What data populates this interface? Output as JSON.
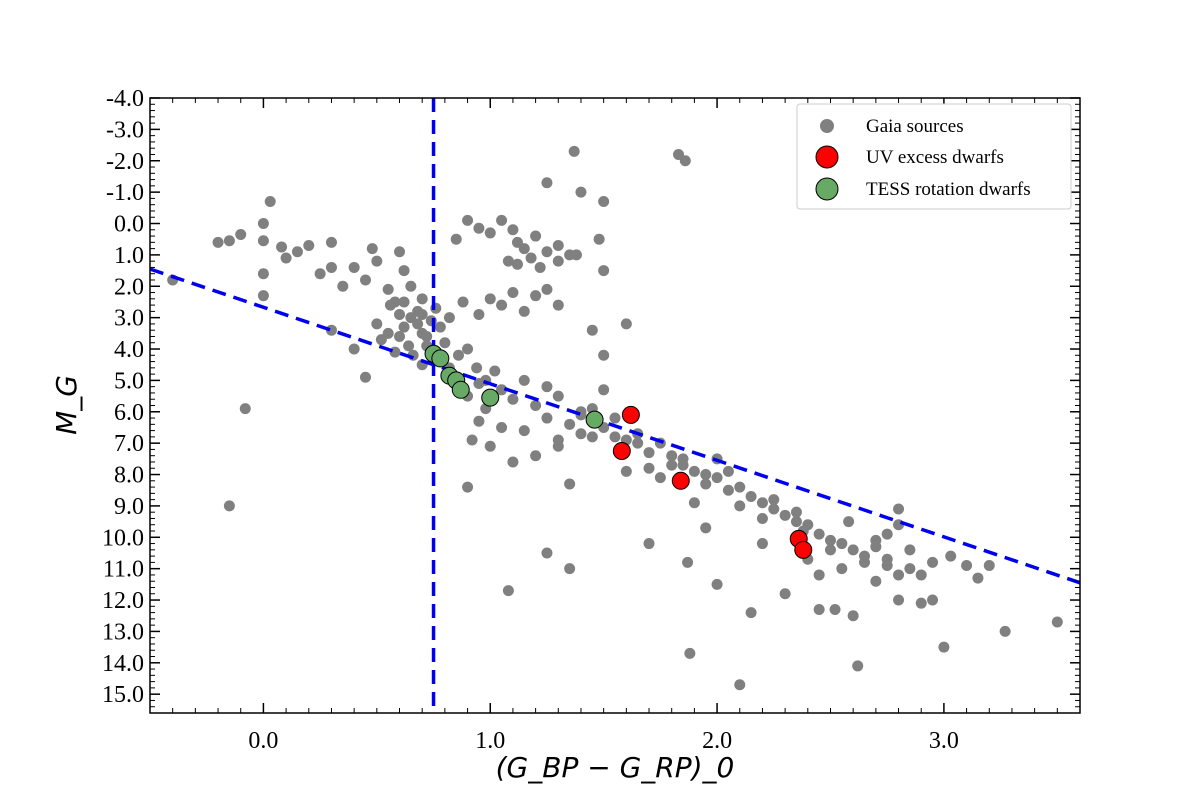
{
  "chart_data": {
    "type": "scatter",
    "xlabel": "(G_BP − G_RP)_0",
    "ylabel": "M_G",
    "xlim": [
      -0.5,
      3.6
    ],
    "ylim": [
      15.6,
      -4.0
    ],
    "x_ticks": [
      0.0,
      1.0,
      2.0,
      3.0
    ],
    "x_tick_labels": [
      "0.0",
      "1.0",
      "2.0",
      "3.0"
    ],
    "y_ticks": [
      -4,
      -3,
      -2,
      -1,
      0,
      1,
      2,
      3,
      4,
      5,
      6,
      7,
      8,
      9,
      10,
      11,
      12,
      13,
      14,
      15
    ],
    "y_tick_labels": [
      "-4.0",
      "-3.0",
      "-2.0",
      "-1.0",
      "0.0",
      "1.0",
      "2.0",
      "3.0",
      "4.0",
      "5.0",
      "6.0",
      "7.0",
      "8.0",
      "9.0",
      "10.0",
      "11.0",
      "12.0",
      "13.0",
      "14.0",
      "15.0"
    ],
    "legend": {
      "position": "top-right",
      "entries": [
        {
          "label": "Gaia sources",
          "color": "#808080"
        },
        {
          "label": "UV excess dwarfs",
          "color": "#ff0000"
        },
        {
          "label": "TESS rotation dwarfs",
          "color": "#66aa66"
        }
      ]
    },
    "colors": {
      "gaia": "#808080",
      "uv": "#ff0000",
      "tess": "#66aa66",
      "line": "#0000ee"
    },
    "reference_lines": {
      "vertical_x": 0.75,
      "diagonal": {
        "x": [
          -0.5,
          3.6
        ],
        "y": [
          1.45,
          11.45
        ]
      }
    },
    "series": [
      {
        "name": "Gaia sources",
        "points": [
          [
            -0.4,
            1.8
          ],
          [
            -0.2,
            0.6
          ],
          [
            -0.15,
            0.55
          ],
          [
            -0.1,
            0.35
          ],
          [
            0.0,
            0.0
          ],
          [
            0.0,
            0.55
          ],
          [
            0.03,
            -0.7
          ],
          [
            0.08,
            0.75
          ],
          [
            0.1,
            1.1
          ],
          [
            0.0,
            1.6
          ],
          [
            0.0,
            2.3
          ],
          [
            0.15,
            0.9
          ],
          [
            0.2,
            0.7
          ],
          [
            0.25,
            1.6
          ],
          [
            0.3,
            1.4
          ],
          [
            0.35,
            2.0
          ],
          [
            0.3,
            0.6
          ],
          [
            0.4,
            1.4
          ],
          [
            0.45,
            1.8
          ],
          [
            0.5,
            1.2
          ],
          [
            0.48,
            0.8
          ],
          [
            0.6,
            0.9
          ],
          [
            0.62,
            1.5
          ],
          [
            0.55,
            2.1
          ],
          [
            0.58,
            2.5
          ],
          [
            0.65,
            2.0
          ],
          [
            0.7,
            2.9
          ],
          [
            -0.15,
            9.0
          ],
          [
            -0.08,
            5.9
          ],
          [
            0.3,
            3.4
          ],
          [
            0.85,
            0.5
          ],
          [
            0.9,
            -0.1
          ],
          [
            0.95,
            0.15
          ],
          [
            1.0,
            0.3
          ],
          [
            1.05,
            -0.1
          ],
          [
            1.1,
            0.2
          ],
          [
            1.12,
            0.6
          ],
          [
            1.15,
            0.8
          ],
          [
            1.2,
            0.4
          ],
          [
            1.25,
            0.9
          ],
          [
            1.3,
            0.7
          ],
          [
            1.35,
            1.0
          ],
          [
            1.25,
            -1.3
          ],
          [
            1.37,
            -2.3
          ],
          [
            1.4,
            -1.0
          ],
          [
            1.5,
            -0.7
          ],
          [
            1.48,
            0.5
          ],
          [
            1.5,
            1.5
          ],
          [
            0.88,
            2.5
          ],
          [
            0.95,
            2.9
          ],
          [
            1.0,
            2.4
          ],
          [
            1.05,
            2.6
          ],
          [
            1.1,
            2.2
          ],
          [
            1.15,
            2.8
          ],
          [
            1.2,
            2.3
          ],
          [
            1.25,
            2.1
          ],
          [
            1.3,
            2.6
          ],
          [
            1.08,
            1.2
          ],
          [
            1.12,
            1.3
          ],
          [
            1.18,
            1.1
          ],
          [
            1.22,
            1.4
          ],
          [
            1.3,
            1.2
          ],
          [
            1.38,
            1.0
          ],
          [
            1.45,
            3.4
          ],
          [
            1.5,
            4.2
          ],
          [
            1.6,
            3.2
          ],
          [
            1.83,
            -2.2
          ],
          [
            1.86,
            -2.0
          ],
          [
            0.45,
            4.9
          ],
          [
            0.4,
            4.0
          ],
          [
            0.9,
            8.4
          ],
          [
            1.08,
            11.7
          ],
          [
            1.25,
            10.5
          ],
          [
            1.35,
            11.0
          ],
          [
            1.7,
            10.2
          ],
          [
            1.87,
            10.8
          ],
          [
            1.88,
            13.7
          ],
          [
            2.0,
            11.5
          ],
          [
            2.1,
            14.7
          ],
          [
            2.15,
            12.4
          ],
          [
            2.3,
            11.8
          ],
          [
            2.45,
            12.3
          ],
          [
            2.52,
            12.3
          ],
          [
            2.6,
            12.5
          ],
          [
            2.62,
            14.1
          ],
          [
            2.8,
            12.0
          ],
          [
            2.9,
            12.1
          ],
          [
            2.95,
            12.0
          ],
          [
            3.0,
            13.5
          ],
          [
            3.03,
            10.6
          ],
          [
            3.1,
            10.9
          ],
          [
            3.15,
            11.3
          ],
          [
            3.2,
            10.9
          ],
          [
            3.27,
            13.0
          ],
          [
            3.5,
            12.7
          ],
          [
            1.95,
            9.7
          ],
          [
            2.1,
            9.0
          ],
          [
            2.2,
            9.4
          ],
          [
            2.25,
            8.8
          ],
          [
            2.38,
            9.8
          ],
          [
            2.4,
            10.7
          ],
          [
            2.5,
            10.4
          ],
          [
            2.55,
            11.0
          ],
          [
            2.58,
            9.5
          ],
          [
            2.65,
            10.8
          ],
          [
            2.7,
            10.1
          ],
          [
            2.75,
            10.7
          ],
          [
            2.8,
            9.6
          ],
          [
            2.85,
            10.4
          ],
          [
            2.9,
            11.2
          ],
          [
            2.95,
            10.8
          ],
          [
            2.8,
            9.1
          ],
          [
            2.75,
            9.9
          ],
          [
            2.7,
            11.4
          ],
          [
            2.45,
            11.2
          ],
          [
            2.35,
            9.2
          ],
          [
            2.2,
            10.2
          ],
          [
            1.5,
            5.3
          ],
          [
            1.55,
            6.8
          ],
          [
            1.6,
            7.9
          ],
          [
            1.65,
            7.0
          ],
          [
            1.7,
            7.8
          ],
          [
            1.75,
            8.1
          ],
          [
            1.8,
            7.4
          ],
          [
            1.85,
            7.7
          ],
          [
            1.9,
            8.9
          ],
          [
            1.95,
            8.0
          ],
          [
            2.0,
            7.5
          ],
          [
            2.05,
            7.9
          ],
          [
            1.3,
            7.1
          ],
          [
            1.4,
            6.1
          ],
          [
            1.45,
            6.8
          ],
          [
            1.35,
            8.3
          ],
          [
            1.2,
            7.4
          ],
          [
            1.1,
            7.6
          ],
          [
            1.05,
            6.5
          ],
          [
            0.98,
            5.9
          ],
          [
            0.92,
            6.9
          ],
          [
            0.95,
            6.3
          ],
          [
            1.0,
            7.1
          ],
          [
            0.6,
            3.6
          ],
          [
            0.62,
            3.3
          ],
          [
            0.65,
            3.0
          ],
          [
            0.68,
            2.8
          ],
          [
            0.7,
            3.5
          ],
          [
            0.72,
            3.9
          ],
          [
            0.74,
            3.1
          ],
          [
            0.76,
            2.7
          ],
          [
            0.78,
            3.3
          ],
          [
            0.8,
            3.8
          ],
          [
            0.82,
            3.0
          ],
          [
            0.64,
            3.9
          ],
          [
            0.66,
            4.2
          ],
          [
            0.7,
            4.5
          ],
          [
            0.74,
            4.0
          ],
          [
            0.78,
            4.4
          ],
          [
            0.82,
            4.6
          ],
          [
            0.86,
            4.2
          ],
          [
            0.9,
            4.0
          ],
          [
            0.94,
            4.6
          ],
          [
            0.98,
            5.0
          ],
          [
            1.02,
            4.7
          ],
          [
            0.55,
            3.5
          ],
          [
            0.5,
            3.2
          ],
          [
            0.52,
            3.7
          ],
          [
            0.58,
            4.1
          ],
          [
            0.6,
            2.9
          ],
          [
            0.56,
            2.6
          ],
          [
            0.62,
            2.5
          ],
          [
            0.68,
            3.2
          ],
          [
            0.7,
            2.4
          ],
          [
            0.72,
            3.6
          ],
          [
            1.05,
            5.3
          ],
          [
            1.1,
            5.6
          ],
          [
            1.15,
            5.0
          ],
          [
            1.2,
            5.8
          ],
          [
            1.25,
            6.2
          ],
          [
            1.3,
            5.5
          ],
          [
            1.35,
            6.4
          ],
          [
            1.4,
            6.0
          ],
          [
            1.45,
            5.9
          ],
          [
            1.5,
            6.5
          ],
          [
            1.55,
            6.2
          ],
          [
            1.6,
            6.9
          ],
          [
            1.65,
            6.7
          ],
          [
            1.7,
            7.3
          ],
          [
            1.75,
            7.0
          ],
          [
            1.8,
            7.7
          ],
          [
            1.85,
            7.5
          ],
          [
            1.9,
            7.9
          ],
          [
            1.95,
            8.3
          ],
          [
            2.0,
            8.1
          ],
          [
            2.05,
            8.5
          ],
          [
            2.1,
            8.4
          ],
          [
            2.15,
            8.7
          ],
          [
            2.2,
            8.9
          ],
          [
            2.25,
            9.1
          ],
          [
            2.3,
            9.3
          ],
          [
            2.35,
            9.5
          ],
          [
            2.4,
            9.6
          ],
          [
            2.45,
            9.9
          ],
          [
            2.5,
            10.1
          ],
          [
            2.55,
            10.2
          ],
          [
            2.6,
            10.4
          ],
          [
            2.65,
            10.6
          ],
          [
            2.7,
            10.3
          ],
          [
            2.75,
            10.9
          ],
          [
            2.8,
            11.2
          ],
          [
            2.85,
            11.0
          ],
          [
            1.15,
            6.6
          ],
          [
            1.25,
            5.2
          ],
          [
            1.0,
            5.6
          ],
          [
            0.95,
            5.1
          ],
          [
            0.9,
            5.5
          ],
          [
            1.3,
            6.9
          ],
          [
            1.4,
            6.7
          ]
        ]
      },
      {
        "name": "UV excess dwarfs",
        "points": [
          [
            1.62,
            6.1
          ],
          [
            1.58,
            7.25
          ],
          [
            1.84,
            8.2
          ],
          [
            2.36,
            10.05
          ],
          [
            2.38,
            10.4
          ]
        ]
      },
      {
        "name": "TESS rotation dwarfs",
        "points": [
          [
            0.75,
            4.15
          ],
          [
            0.78,
            4.3
          ],
          [
            0.82,
            4.85
          ],
          [
            0.85,
            5.0
          ],
          [
            0.87,
            5.3
          ],
          [
            1.0,
            5.55
          ],
          [
            1.46,
            6.25
          ]
        ]
      }
    ]
  }
}
